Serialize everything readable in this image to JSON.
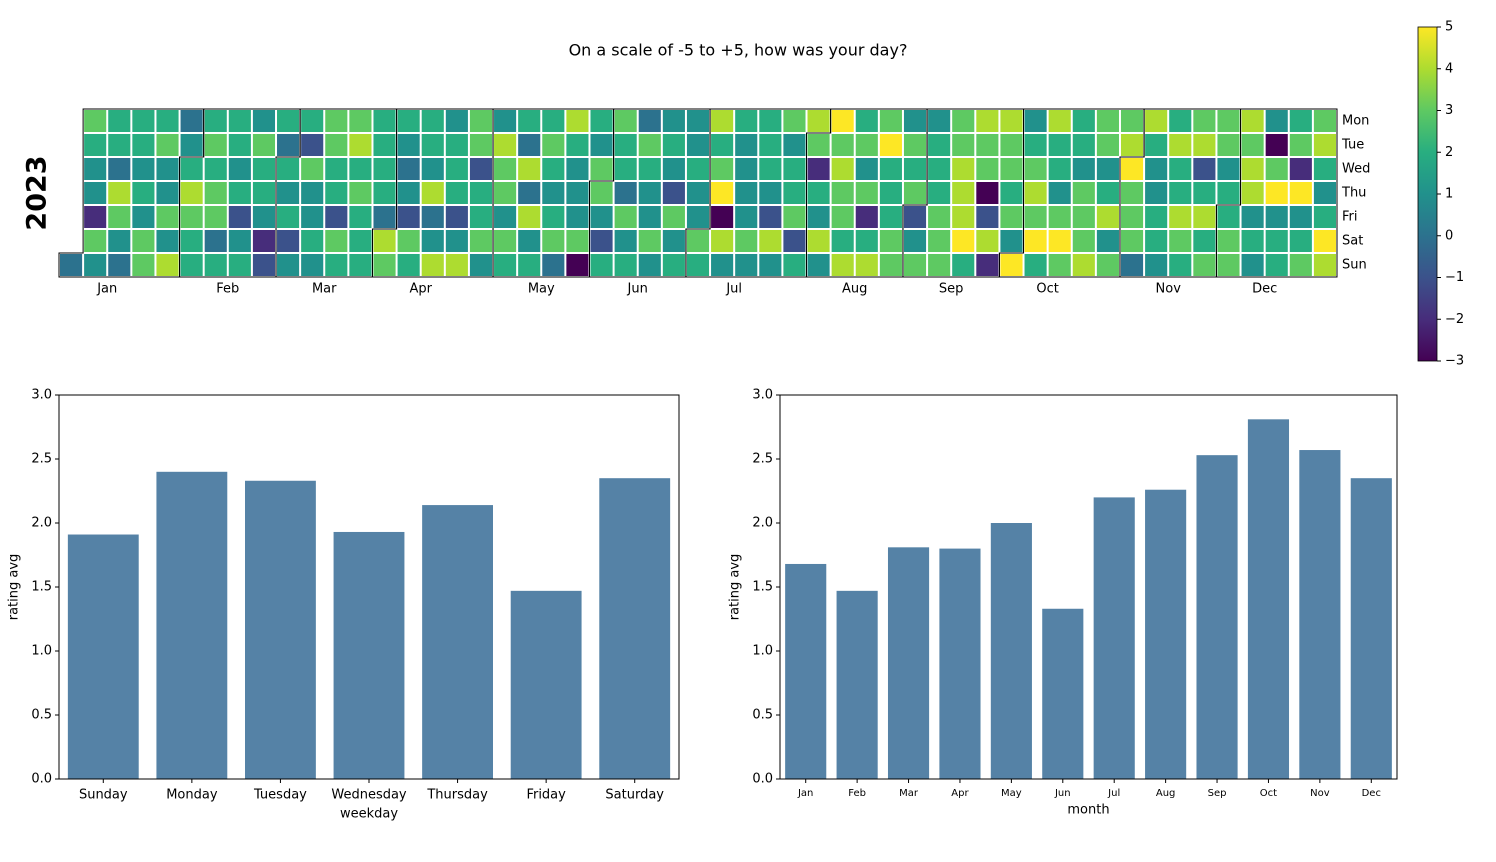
{
  "chart_data": [
    {
      "type": "heatmap",
      "title": "On a scale of -5 to +5, how was your day?",
      "year": 2023,
      "row_labels": [
        "Mon",
        "Tue",
        "Wed",
        "Thu",
        "Fri",
        "Sat",
        "Sun"
      ],
      "month_labels": [
        "Jan",
        "Feb",
        "Mar",
        "Apr",
        "May",
        "Jun",
        "Jul",
        "Aug",
        "Sep",
        "Oct",
        "Nov",
        "Dec"
      ],
      "colormap": "viridis",
      "clim": [
        -3,
        5
      ],
      "cticks": [
        {
          "value": -3,
          "label": "−3"
        },
        {
          "value": -2,
          "label": "−2"
        },
        {
          "value": -1,
          "label": "−1"
        },
        0,
        1,
        2,
        3,
        4,
        5
      ],
      "values": [
        [
          null,
          3,
          2,
          2,
          2,
          0,
          2,
          2,
          1,
          2,
          2,
          3,
          3,
          2,
          2,
          2,
          1,
          3,
          1,
          2,
          2,
          4,
          2,
          3,
          0,
          1,
          1,
          4,
          2,
          2,
          3,
          4,
          5,
          2,
          3,
          1,
          1,
          3,
          4,
          4,
          1,
          4,
          2,
          3,
          3,
          4,
          2,
          3,
          3,
          4,
          1,
          2,
          3
        ],
        [
          null,
          2,
          2,
          2,
          3,
          1,
          3,
          2,
          3,
          0,
          -1,
          3,
          4,
          2,
          1,
          2,
          2,
          3,
          4,
          0,
          3,
          2,
          1,
          2,
          3,
          2,
          1,
          2,
          1,
          2,
          1,
          3,
          3,
          3,
          5,
          3,
          2,
          3,
          3,
          3,
          2,
          2,
          2,
          3,
          4,
          2,
          4,
          4,
          3,
          3,
          -3,
          3,
          4
        ],
        [
          null,
          1,
          0,
          1,
          1,
          2,
          2,
          1,
          2,
          2,
          3,
          2,
          2,
          2,
          0,
          1,
          2,
          -1,
          3,
          4,
          2,
          1,
          3,
          2,
          2,
          1,
          2,
          3,
          1,
          2,
          2,
          -2,
          4,
          1,
          2,
          2,
          2,
          4,
          3,
          3,
          3,
          2,
          1,
          1,
          5,
          1,
          2,
          -1,
          1,
          4,
          3,
          -2,
          2
        ],
        [
          null,
          1,
          4,
          2,
          1,
          4,
          3,
          2,
          2,
          1,
          1,
          2,
          3,
          2,
          1,
          4,
          2,
          2,
          3,
          0,
          1,
          1,
          3,
          0,
          1,
          -1,
          1,
          5,
          1,
          1,
          2,
          2,
          3,
          3,
          2,
          3,
          2,
          4,
          -3,
          2,
          4,
          1,
          3,
          2,
          3,
          1,
          2,
          2,
          2,
          4,
          5,
          5,
          1
        ],
        [
          null,
          -2,
          3,
          1,
          3,
          3,
          3,
          -1,
          1,
          2,
          1,
          -1,
          2,
          0,
          -1,
          0,
          -1,
          2,
          1,
          4,
          2,
          1,
          1,
          3,
          1,
          3,
          1,
          -3,
          1,
          -1,
          3,
          1,
          3,
          -2,
          2,
          -1,
          3,
          4,
          -1,
          3,
          3,
          3,
          3,
          4,
          3,
          2,
          4,
          4,
          2,
          1,
          1,
          1,
          2
        ],
        [
          null,
          3,
          1,
          3,
          1,
          2,
          0,
          1,
          -2,
          -1,
          2,
          3,
          2,
          4,
          3,
          1,
          1,
          3,
          3,
          1,
          3,
          3,
          -1,
          1,
          3,
          1,
          3,
          4,
          3,
          4,
          -1,
          4,
          2,
          2,
          3,
          1,
          3,
          5,
          4,
          1,
          5,
          5,
          3,
          1,
          3,
          2,
          3,
          2,
          3,
          2,
          2,
          2,
          5
        ],
        [
          0,
          1,
          0,
          3,
          4,
          2,
          2,
          2,
          -1,
          1,
          1,
          2,
          2,
          3,
          2,
          4,
          4,
          1,
          2,
          2,
          0,
          -3,
          2,
          2,
          1,
          2,
          2,
          1,
          1,
          1,
          2,
          1,
          4,
          4,
          3,
          3,
          3,
          2,
          -2,
          5,
          2,
          3,
          4,
          3,
          0,
          1,
          2,
          3,
          3,
          1,
          2,
          3,
          4
        ]
      ]
    },
    {
      "type": "bar",
      "categories": [
        "Sunday",
        "Monday",
        "Tuesday",
        "Wednesday",
        "Thursday",
        "Friday",
        "Saturday"
      ],
      "values": [
        1.91,
        2.4,
        2.33,
        1.93,
        2.14,
        1.47,
        2.35
      ],
      "color": "#5582a6",
      "xlabel": "weekday",
      "ylabel": "rating avg",
      "ylim": [
        0,
        3
      ],
      "yticks": [
        {
          "value": 0,
          "label": "0.0"
        },
        0.5,
        {
          "value": 1,
          "label": "1.0"
        },
        1.5,
        {
          "value": 2,
          "label": "2.0"
        },
        2.5,
        {
          "value": 3,
          "label": "3.0"
        }
      ]
    },
    {
      "type": "bar",
      "categories": [
        "Jan",
        "Feb",
        "Mar",
        "Apr",
        "May",
        "Jun",
        "Jul",
        "Aug",
        "Sep",
        "Oct",
        "Nov",
        "Dec"
      ],
      "values": [
        1.68,
        1.47,
        1.81,
        1.8,
        2.0,
        1.33,
        2.2,
        2.26,
        2.53,
        2.81,
        2.57,
        2.35
      ],
      "color": "#5582a6",
      "xlabel": "month",
      "ylabel": "rating avg",
      "ylim": [
        0,
        3
      ],
      "yticks": [
        {
          "value": 0,
          "label": "0.0"
        },
        0.5,
        {
          "value": 1,
          "label": "1.0"
        },
        1.5,
        {
          "value": 2,
          "label": "2.0"
        },
        2.5,
        {
          "value": 3,
          "label": "3.0"
        }
      ]
    }
  ]
}
